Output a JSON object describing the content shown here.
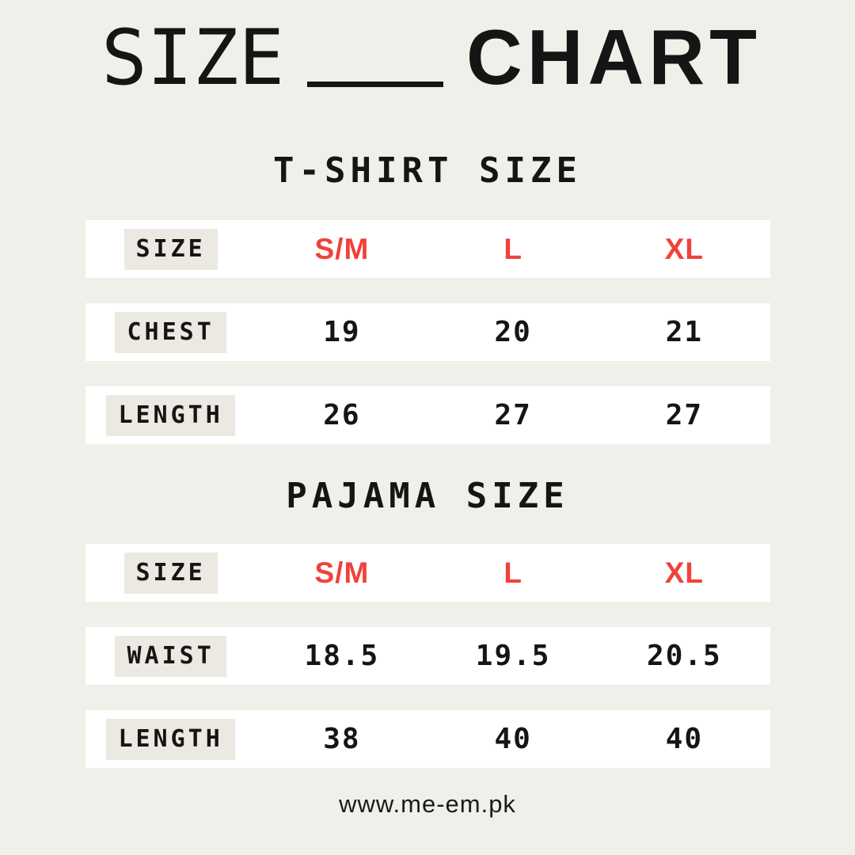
{
  "header": {
    "title_left": "SIZE",
    "title_right": "CHART"
  },
  "tables": [
    {
      "heading": "T-SHIRT SIZE",
      "rows": [
        {
          "label": "SIZE",
          "values": [
            "S/M",
            "L",
            "XL"
          ]
        },
        {
          "label": "CHEST",
          "values": [
            "19",
            "20",
            "21"
          ]
        },
        {
          "label": "LENGTH",
          "values": [
            "26",
            "27",
            "27"
          ]
        }
      ]
    },
    {
      "heading": "PAJAMA SIZE",
      "rows": [
        {
          "label": "SIZE",
          "values": [
            "S/M",
            "L",
            "XL"
          ]
        },
        {
          "label": "WAIST",
          "values": [
            "18.5",
            "19.5",
            "20.5"
          ]
        },
        {
          "label": "LENGTH",
          "values": [
            "38",
            "40",
            "40"
          ]
        }
      ]
    }
  ],
  "footer": {
    "url": "www.me-em.pk"
  },
  "colors": {
    "background": "#f0efe9",
    "strip": "#ffffff",
    "label_bg": "#ebe9e1",
    "accent_red": "#f0423a",
    "text": "#151515"
  },
  "chart_data": [
    {
      "type": "table",
      "title": "T-SHIRT SIZE",
      "columns": [
        "SIZE",
        "S/M",
        "L",
        "XL"
      ],
      "rows": [
        [
          "CHEST",
          19,
          20,
          21
        ],
        [
          "LENGTH",
          26,
          27,
          27
        ]
      ]
    },
    {
      "type": "table",
      "title": "PAJAMA SIZE",
      "columns": [
        "SIZE",
        "S/M",
        "L",
        "XL"
      ],
      "rows": [
        [
          "WAIST",
          18.5,
          19.5,
          20.5
        ],
        [
          "LENGTH",
          38,
          40,
          40
        ]
      ]
    }
  ]
}
